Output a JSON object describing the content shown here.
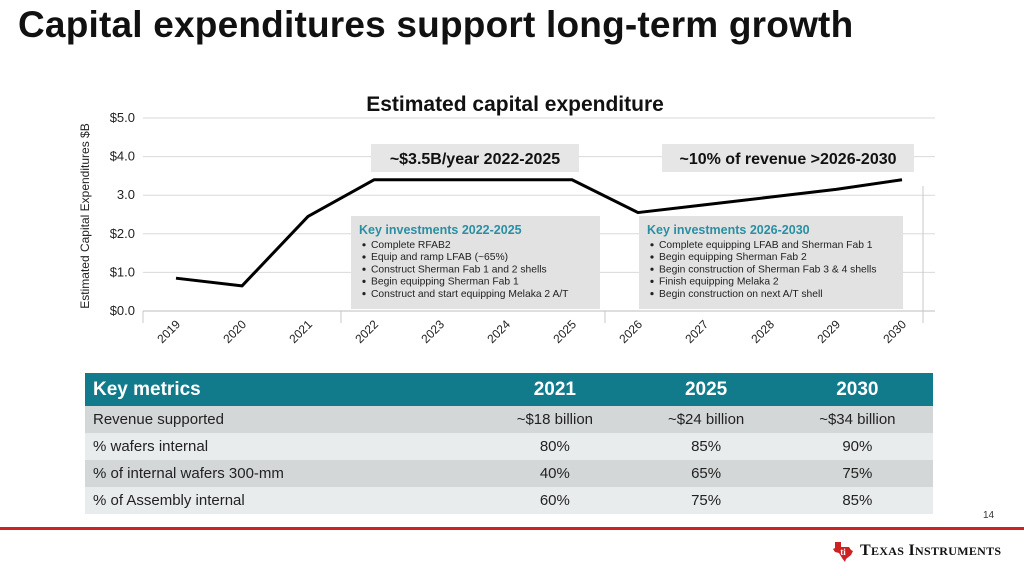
{
  "slide": {
    "title": "Capital expenditures support long-term growth",
    "page_number": "14",
    "logo_text": "Texas Instruments",
    "accent_color": "#cc2222",
    "table_header_color": "#117a8b"
  },
  "chart_data": {
    "type": "line",
    "title": "Estimated capital expenditure",
    "xlabel": "",
    "ylabel": "Estimated Capital Expenditures $B",
    "categories": [
      "2019",
      "2020",
      "2021",
      "2022",
      "2023",
      "2024",
      "2025",
      "2026",
      "2027",
      "2028",
      "2029",
      "2030"
    ],
    "series": [
      {
        "values": [
          0.85,
          0.65,
          2.45,
          3.4,
          3.4,
          3.4,
          3.4,
          2.55,
          2.75,
          2.95,
          3.15,
          3.4
        ],
        "color": "#000000"
      }
    ],
    "y_ticks": [
      "$0.0",
      "$1.0",
      "$2.0",
      "3.0",
      "$4.0",
      "$5.0"
    ],
    "y_tick_values": [
      0,
      1,
      2,
      3,
      4,
      5
    ],
    "ylim": [
      0,
      5
    ],
    "grid": true,
    "annotations": [
      {
        "label": "~$3.5B/year 2022-2025",
        "box_title": "Key investments 2022-2025",
        "items": [
          "Complete RFAB2",
          "Equip and ramp LFAB (~65%)",
          "Construct Sherman Fab 1 and 2 shells",
          "Begin equipping Sherman Fab 1",
          "Construct and start equipping Melaka 2 A/T"
        ]
      },
      {
        "label": "~10% of revenue >2026-2030",
        "box_title": "Key investments 2026-2030",
        "items": [
          "Complete equipping LFAB and Sherman Fab 1",
          "Begin equipping Sherman Fab 2",
          "Begin construction of Sherman Fab 3 & 4 shells",
          "Finish equipping Melaka 2",
          "Begin construction on next A/T shell"
        ]
      }
    ]
  },
  "metrics_table": {
    "headers": [
      "Key metrics",
      "2021",
      "2025",
      "2030"
    ],
    "rows": [
      [
        "Revenue supported",
        "~$18 billion",
        "~$24 billion",
        "~$34 billion"
      ],
      [
        "% wafers internal",
        "80%",
        "85%",
        "90%"
      ],
      [
        "% of internal wafers 300-mm",
        "40%",
        "65%",
        "75%"
      ],
      [
        "% of Assembly internal",
        "60%",
        "75%",
        "85%"
      ]
    ]
  }
}
